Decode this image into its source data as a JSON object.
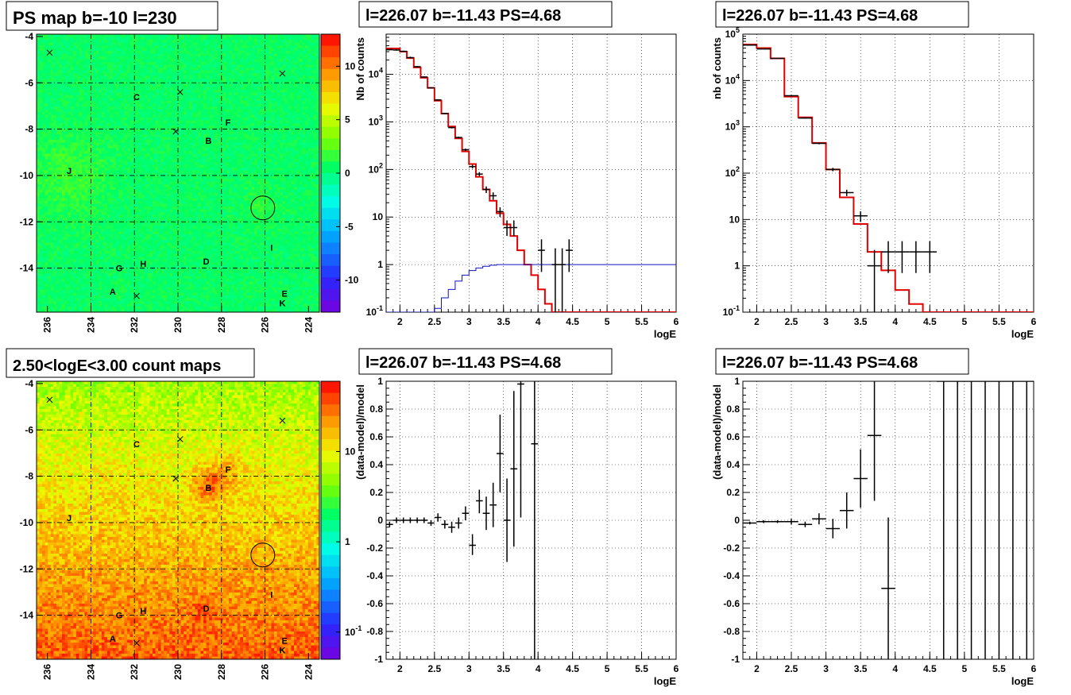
{
  "chart_data": [
    {
      "panel": "ps-map",
      "type": "heatmap",
      "title": "PS map b=-10 l=230",
      "x_ticks": [
        "236",
        "234",
        "232",
        "230",
        "228",
        "226",
        "224"
      ],
      "y_ticks": [
        "-4",
        "-6",
        "-8",
        "-10",
        "-12",
        "-14"
      ],
      "xlim": [
        236.5,
        223.5
      ],
      "ylim": [
        -15.9,
        -3.9
      ],
      "colorbar": {
        "ticks": [
          "10",
          "5",
          "0",
          "-5",
          "-10"
        ],
        "range": [
          -13,
          13
        ],
        "scale": "linear"
      },
      "markers": [
        {
          "type": "cross",
          "l": 235.9,
          "b": -4.7
        },
        {
          "type": "cross",
          "l": 229.9,
          "b": -6.4
        },
        {
          "type": "cross",
          "l": 225.2,
          "b": -5.6
        },
        {
          "type": "cross",
          "l": 230.1,
          "b": -8.1
        },
        {
          "type": "cross",
          "l": 231.9,
          "b": -15.2
        },
        {
          "type": "circle",
          "l": 226.1,
          "b": -11.4
        }
      ],
      "labels": [
        {
          "text": "C",
          "l": 231.9,
          "b": -6.6
        },
        {
          "text": "F",
          "l": 227.7,
          "b": -7.7
        },
        {
          "text": "B",
          "l": 228.6,
          "b": -8.5
        },
        {
          "text": "J",
          "l": 235.0,
          "b": -9.8
        },
        {
          "text": "I",
          "l": 225.7,
          "b": -13.1
        },
        {
          "text": "G",
          "l": 232.7,
          "b": -14.0
        },
        {
          "text": "H",
          "l": 231.6,
          "b": -13.8
        },
        {
          "text": "D",
          "l": 228.7,
          "b": -13.7
        },
        {
          "text": "A",
          "l": 233.0,
          "b": -15.0
        },
        {
          "text": "E",
          "l": 225.1,
          "b": -15.1
        },
        {
          "text": "K",
          "l": 225.2,
          "b": -15.5
        }
      ]
    },
    {
      "panel": "count-spectrum",
      "type": "line",
      "title": "l=226.07 b=-11.43 PS=4.68",
      "xlabel": "logE",
      "ylabel": "Nb of counts",
      "xlim": [
        1.8,
        6
      ],
      "ylim": [
        0.1,
        70000
      ],
      "yscale": "log",
      "grid": true,
      "x_ticks": [
        "2",
        "2.5",
        "3",
        "3.5",
        "4",
        "4.5",
        "5",
        "5.5",
        "6"
      ],
      "y_ticks": [
        "10^-1",
        "1",
        "10",
        "10^2",
        "10^3",
        "10^4"
      ],
      "bin_edges": [
        1.8,
        1.9,
        2.0,
        2.1,
        2.2,
        2.3,
        2.4,
        2.5,
        2.6,
        2.7,
        2.8,
        2.9,
        3.0,
        3.1,
        3.2,
        3.3,
        3.4,
        3.5,
        3.6,
        3.7,
        3.8,
        3.9,
        4.0,
        4.1,
        4.2,
        4.3,
        4.4,
        4.5,
        6.0
      ],
      "series": [
        {
          "style": "red-step",
          "values": [
            35000,
            35000,
            30000,
            22000,
            14000,
            8500,
            5200,
            2800,
            1500,
            800,
            450,
            240,
            130,
            70,
            38,
            22,
            12,
            7,
            4,
            2,
            1,
            0.6,
            0.3,
            0.15,
            0.1,
            0.1,
            0.1,
            0.1
          ]
        },
        {
          "style": "blue-step",
          "values": [
            0.1,
            0.1,
            0.1,
            0.1,
            0.1,
            0.1,
            0.1,
            0.12,
            0.2,
            0.3,
            0.45,
            0.6,
            0.75,
            0.85,
            0.92,
            0.97,
            1.0,
            1.0,
            1.0,
            1.0,
            1.0,
            1.0,
            1.0,
            1.0,
            1.0,
            1.0,
            1.0,
            1.0
          ]
        },
        {
          "style": "data",
          "points": [
            {
              "x": 1.85,
              "y": 33000,
              "lo": 32000,
              "hi": 34000
            },
            {
              "x": 1.95,
              "y": 32500,
              "lo": 31500,
              "hi": 33500
            },
            {
              "x": 2.05,
              "y": 30500,
              "lo": 29500,
              "hi": 31500
            },
            {
              "x": 2.15,
              "y": 22500,
              "lo": 21500,
              "hi": 23500
            },
            {
              "x": 2.25,
              "y": 14500,
              "lo": 14000,
              "hi": 15000
            },
            {
              "x": 2.35,
              "y": 8800,
              "lo": 8600,
              "hi": 9000
            },
            {
              "x": 2.45,
              "y": 5200,
              "lo": 5050,
              "hi": 5350
            },
            {
              "x": 2.55,
              "y": 2900,
              "lo": 2800,
              "hi": 3000
            },
            {
              "x": 2.65,
              "y": 1500,
              "lo": 1450,
              "hi": 1550
            },
            {
              "x": 2.75,
              "y": 760,
              "lo": 730,
              "hi": 790
            },
            {
              "x": 2.85,
              "y": 470,
              "lo": 450,
              "hi": 490
            },
            {
              "x": 2.95,
              "y": 260,
              "lo": 245,
              "hi": 275
            },
            {
              "x": 3.05,
              "y": 115,
              "lo": 105,
              "hi": 125
            },
            {
              "x": 3.15,
              "y": 80,
              "lo": 72,
              "hi": 88
            },
            {
              "x": 3.25,
              "y": 38,
              "lo": 32,
              "hi": 44
            },
            {
              "x": 3.35,
              "y": 28,
              "lo": 23,
              "hi": 33
            },
            {
              "x": 3.45,
              "y": 13,
              "lo": 10,
              "hi": 16
            },
            {
              "x": 3.55,
              "y": 6,
              "lo": 4,
              "hi": 8.5
            },
            {
              "x": 3.65,
              "y": 6,
              "lo": 4,
              "hi": 8.5
            },
            {
              "x": 4.05,
              "y": 2,
              "lo": 0.7,
              "hi": 3.4
            },
            {
              "x": 4.25,
              "y": 1,
              "lo": 0.1,
              "hi": 2.2
            },
            {
              "x": 4.35,
              "y": 1,
              "lo": 0.1,
              "hi": 2.2
            },
            {
              "x": 4.45,
              "y": 2,
              "lo": 0.7,
              "hi": 3.4
            }
          ]
        }
      ]
    },
    {
      "panel": "count-spectrum-coarse",
      "type": "line",
      "title": "l=226.07 b=-11.43 PS=4.68",
      "xlabel": "logE",
      "ylabel": "nb of counts",
      "xlim": [
        1.8,
        6
      ],
      "ylim": [
        0.1,
        100000
      ],
      "yscale": "log",
      "grid": true,
      "x_ticks": [
        "2",
        "2.5",
        "3",
        "3.5",
        "4",
        "4.5",
        "5",
        "5.5",
        "6"
      ],
      "y_ticks": [
        "10^-1",
        "1",
        "10",
        "10^2",
        "10^3",
        "10^4",
        "10^5"
      ],
      "bin_edges": [
        1.8,
        2.0,
        2.2,
        2.4,
        2.6,
        2.8,
        3.0,
        3.2,
        3.4,
        3.6,
        3.8,
        4.0,
        4.2,
        4.4,
        4.6,
        6.0
      ],
      "series": [
        {
          "style": "red-step",
          "values": [
            60000,
            50000,
            30000,
            4500,
            1600,
            450,
            120,
            30,
            8,
            2,
            0.8,
            0.3,
            0.15,
            0.1,
            0.1
          ]
        },
        {
          "style": "data",
          "points": [
            {
              "x": 1.9,
              "y": 58000,
              "lo": 57000,
              "hi": 59000
            },
            {
              "x": 2.1,
              "y": 48000,
              "lo": 47000,
              "hi": 49000
            },
            {
              "x": 2.3,
              "y": 30000,
              "lo": 29500,
              "hi": 30500
            },
            {
              "x": 2.5,
              "y": 4700,
              "lo": 4550,
              "hi": 4850
            },
            {
              "x": 2.7,
              "y": 1550,
              "lo": 1500,
              "hi": 1600
            },
            {
              "x": 2.9,
              "y": 440,
              "lo": 420,
              "hi": 460
            },
            {
              "x": 3.1,
              "y": 120,
              "lo": 110,
              "hi": 130
            },
            {
              "x": 3.3,
              "y": 38,
              "lo": 32,
              "hi": 44
            },
            {
              "x": 3.5,
              "y": 12,
              "lo": 9,
              "hi": 15
            },
            {
              "x": 3.7,
              "y": 1,
              "lo": 0.1,
              "hi": 2.2
            },
            {
              "x": 3.9,
              "y": 2,
              "lo": 0.7,
              "hi": 3.4
            },
            {
              "x": 4.1,
              "y": 2,
              "lo": 0.7,
              "hi": 3.4
            },
            {
              "x": 4.3,
              "y": 2,
              "lo": 0.7,
              "hi": 3.4
            },
            {
              "x": 4.5,
              "y": 2,
              "lo": 0.7,
              "hi": 3.4
            }
          ]
        }
      ]
    },
    {
      "panel": "count-map",
      "type": "heatmap",
      "title": "2.50<logE<3.00 count maps",
      "x_ticks": [
        "236",
        "234",
        "232",
        "230",
        "228",
        "226",
        "224"
      ],
      "y_ticks": [
        "-4",
        "-6",
        "-8",
        "-10",
        "-12",
        "-14"
      ],
      "xlim": [
        236.5,
        223.5
      ],
      "ylim": [
        -15.9,
        -3.9
      ],
      "colorbar": {
        "ticks": [
          "10",
          "1",
          "10^-1"
        ],
        "range": [
          0.05,
          60
        ],
        "scale": "log"
      },
      "markers": [
        {
          "type": "cross",
          "l": 235.9,
          "b": -4.7
        },
        {
          "type": "cross",
          "l": 229.9,
          "b": -6.4
        },
        {
          "type": "cross",
          "l": 225.2,
          "b": -5.6
        },
        {
          "type": "cross",
          "l": 230.1,
          "b": -8.1
        },
        {
          "type": "cross",
          "l": 231.9,
          "b": -15.2
        },
        {
          "type": "circle",
          "l": 226.1,
          "b": -11.4
        }
      ],
      "labels": [
        {
          "text": "C",
          "l": 231.9,
          "b": -6.6
        },
        {
          "text": "F",
          "l": 227.7,
          "b": -7.7
        },
        {
          "text": "B",
          "l": 228.6,
          "b": -8.5
        },
        {
          "text": "J",
          "l": 235.0,
          "b": -9.8
        },
        {
          "text": "I",
          "l": 225.7,
          "b": -13.1
        },
        {
          "text": "G",
          "l": 232.7,
          "b": -14.0
        },
        {
          "text": "H",
          "l": 231.6,
          "b": -13.8
        },
        {
          "text": "D",
          "l": 228.7,
          "b": -13.7
        },
        {
          "text": "A",
          "l": 233.0,
          "b": -15.0
        },
        {
          "text": "E",
          "l": 225.1,
          "b": -15.1
        },
        {
          "text": "K",
          "l": 225.2,
          "b": -15.5
        }
      ]
    },
    {
      "panel": "residuals",
      "type": "scatter",
      "title": "l=226.07 b=-11.43 PS=4.68",
      "xlabel": "logE",
      "ylabel": "(data-model)/model",
      "xlim": [
        1.8,
        6
      ],
      "ylim": [
        -1,
        1
      ],
      "grid": true,
      "x_ticks": [
        "2",
        "2.5",
        "3",
        "3.5",
        "4",
        "4.5",
        "5",
        "5.5",
        "6"
      ],
      "y_ticks": [
        "1",
        "0.8",
        "0.6",
        "0.4",
        "0.2",
        "0",
        "-0.2",
        "-0.4",
        "-0.6",
        "-0.8",
        "-1"
      ],
      "points": [
        {
          "x": 1.85,
          "y": -0.03,
          "lo": -0.05,
          "hi": -0.01
        },
        {
          "x": 1.95,
          "y": 0.0,
          "lo": -0.02,
          "hi": 0.02
        },
        {
          "x": 2.05,
          "y": 0.0,
          "lo": -0.02,
          "hi": 0.02
        },
        {
          "x": 2.15,
          "y": 0.0,
          "lo": -0.02,
          "hi": 0.02
        },
        {
          "x": 2.25,
          "y": 0.0,
          "lo": -0.02,
          "hi": 0.02
        },
        {
          "x": 2.35,
          "y": 0.0,
          "lo": -0.02,
          "hi": 0.02
        },
        {
          "x": 2.45,
          "y": -0.02,
          "lo": -0.04,
          "hi": 0.0
        },
        {
          "x": 2.55,
          "y": 0.02,
          "lo": -0.01,
          "hi": 0.05
        },
        {
          "x": 2.65,
          "y": -0.03,
          "lo": -0.06,
          "hi": 0.0
        },
        {
          "x": 2.75,
          "y": -0.05,
          "lo": -0.09,
          "hi": -0.01
        },
        {
          "x": 2.85,
          "y": -0.02,
          "lo": -0.06,
          "hi": 0.02
        },
        {
          "x": 2.95,
          "y": 0.05,
          "lo": 0.0,
          "hi": 0.1
        },
        {
          "x": 3.05,
          "y": -0.18,
          "lo": -0.25,
          "hi": -0.1
        },
        {
          "x": 3.15,
          "y": 0.14,
          "lo": 0.05,
          "hi": 0.22
        },
        {
          "x": 3.25,
          "y": 0.05,
          "lo": -0.07,
          "hi": 0.17
        },
        {
          "x": 3.35,
          "y": 0.11,
          "lo": -0.05,
          "hi": 0.27
        },
        {
          "x": 3.45,
          "y": 0.48,
          "lo": 0.2,
          "hi": 0.76
        },
        {
          "x": 3.55,
          "y": 0.0,
          "lo": -0.3,
          "hi": 0.3
        },
        {
          "x": 3.65,
          "y": 0.37,
          "lo": -0.19,
          "hi": 0.93
        },
        {
          "x": 3.75,
          "y": 0.98,
          "lo": 0.02,
          "hi": 1.0
        },
        {
          "x": 3.95,
          "y": 0.55,
          "lo": -1.0,
          "hi": 1.0
        }
      ]
    },
    {
      "panel": "residuals-coarse",
      "type": "scatter",
      "title": "l=226.07 b=-11.43 PS=4.68",
      "xlabel": "logE",
      "ylabel": "(data-model)/model",
      "xlim": [
        1.8,
        6
      ],
      "ylim": [
        -1,
        1
      ],
      "grid": true,
      "x_ticks": [
        "2",
        "2.5",
        "3",
        "3.5",
        "4",
        "4.5",
        "5",
        "5.5",
        "6"
      ],
      "y_ticks": [
        "1",
        "0.8",
        "0.6",
        "0.4",
        "0.2",
        "0",
        "-0.2",
        "-0.4",
        "-0.6",
        "-0.8",
        "-1"
      ],
      "points": [
        {
          "x": 1.9,
          "y": -0.02,
          "lo": -0.03,
          "hi": -0.01
        },
        {
          "x": 2.1,
          "y": -0.01,
          "lo": -0.02,
          "hi": 0.0
        },
        {
          "x": 2.3,
          "y": -0.01,
          "lo": -0.02,
          "hi": 0.0
        },
        {
          "x": 2.5,
          "y": -0.01,
          "lo": -0.03,
          "hi": 0.01
        },
        {
          "x": 2.7,
          "y": -0.03,
          "lo": -0.05,
          "hi": -0.01
        },
        {
          "x": 2.9,
          "y": 0.01,
          "lo": -0.03,
          "hi": 0.05
        },
        {
          "x": 3.1,
          "y": -0.06,
          "lo": -0.13,
          "hi": 0.01
        },
        {
          "x": 3.3,
          "y": 0.07,
          "lo": -0.06,
          "hi": 0.2
        },
        {
          "x": 3.5,
          "y": 0.3,
          "lo": 0.09,
          "hi": 0.51
        },
        {
          "x": 3.7,
          "y": 0.61,
          "lo": 0.14,
          "hi": 1.0
        },
        {
          "x": 3.9,
          "y": -0.49,
          "lo": -1.0,
          "hi": 0.02
        },
        {
          "x": 4.7,
          "y": 1,
          "lo": -1,
          "hi": 1
        },
        {
          "x": 4.9,
          "y": 1,
          "lo": -1,
          "hi": 1
        },
        {
          "x": 5.1,
          "y": 1,
          "lo": -1,
          "hi": 1
        },
        {
          "x": 5.3,
          "y": 1,
          "lo": -1,
          "hi": 1
        },
        {
          "x": 5.5,
          "y": 1,
          "lo": -1,
          "hi": 1
        },
        {
          "x": 5.7,
          "y": 1,
          "lo": -1,
          "hi": 1
        },
        {
          "x": 5.9,
          "y": 1,
          "lo": -1,
          "hi": 1
        }
      ]
    }
  ]
}
